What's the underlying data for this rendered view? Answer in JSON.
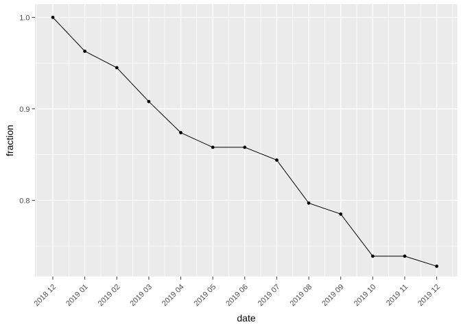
{
  "chart_data": {
    "type": "line",
    "title": "",
    "xlabel": "date",
    "ylabel": "fraction",
    "categories": [
      "2018 12",
      "2019 01",
      "2019 02",
      "2019 03",
      "2019 04",
      "2019 05",
      "2019 06",
      "2019 07",
      "2019 08",
      "2019 09",
      "2019 10",
      "2019 11",
      "2019 12"
    ],
    "series": [
      {
        "name": "fraction",
        "values": [
          1.0,
          0.963,
          0.945,
          0.908,
          0.874,
          0.858,
          0.858,
          0.844,
          0.797,
          0.785,
          0.739,
          0.739,
          0.728
        ]
      }
    ],
    "y_major_ticks": {
      "values": [
        1.0,
        0.9,
        0.8
      ],
      "labels": [
        "1.0",
        "0.9",
        "0.8"
      ]
    },
    "y_minor_ticks": [
      0.95,
      0.85,
      0.75
    ],
    "ylim": [
      0.7167,
      1.0145
    ],
    "x_tick_angle": 45,
    "grid": "major+minor",
    "legend": "none",
    "marker": "point",
    "colors": {
      "panel_background": "#EBEBEB",
      "grid": "#FFFFFF",
      "line": "#000000",
      "point": "#000000",
      "tick_label": "#4D4D4D",
      "tick_mark": "#333333",
      "axis_title": "#000000",
      "page_background": "#FFFFFF"
    }
  }
}
